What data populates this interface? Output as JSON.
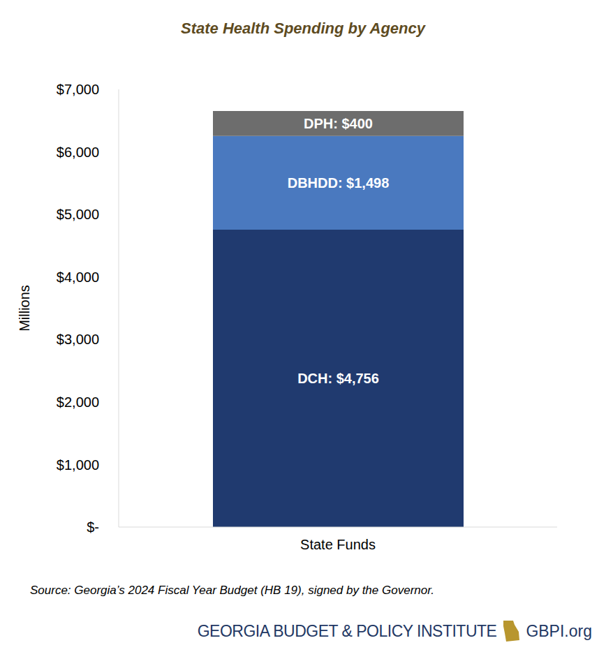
{
  "chart_data": {
    "type": "bar",
    "title": "State Health Spending by Agency",
    "y_label": "Millions",
    "categories": [
      "State Funds"
    ],
    "series": [
      {
        "name": "DCH",
        "color": "#203a6f",
        "values": [
          4756
        ],
        "value_labels": [
          "DCH: $4,756"
        ]
      },
      {
        "name": "DBHDD",
        "color": "#4a79bf",
        "values": [
          1498
        ],
        "value_labels": [
          "DBHDD: $1,498"
        ]
      },
      {
        "name": "DPH",
        "color": "#6d6d6d",
        "values": [
          400
        ],
        "value_labels": [
          "DPH: $400"
        ]
      }
    ],
    "stacked": true,
    "data_labels": true,
    "grid": false,
    "ylim": [
      0,
      7000
    ],
    "yticks": [
      {
        "value": 0,
        "label": "$-"
      },
      {
        "value": 1000,
        "label": "$1,000"
      },
      {
        "value": 2000,
        "label": "$2,000"
      },
      {
        "value": 3000,
        "label": "$3,000"
      },
      {
        "value": 4000,
        "label": "$4,000"
      },
      {
        "value": 5000,
        "label": "$5,000"
      },
      {
        "value": 6000,
        "label": "$6,000"
      },
      {
        "value": 7000,
        "label": "$7,000"
      }
    ],
    "annotations": [
      "Source: Georgia’s 2024 Fiscal Year Budget (HB 19), signed by the Governor.",
      "GEORGIA BUDGET & POLICY INSTITUTE",
      "GBPI.org"
    ]
  }
}
